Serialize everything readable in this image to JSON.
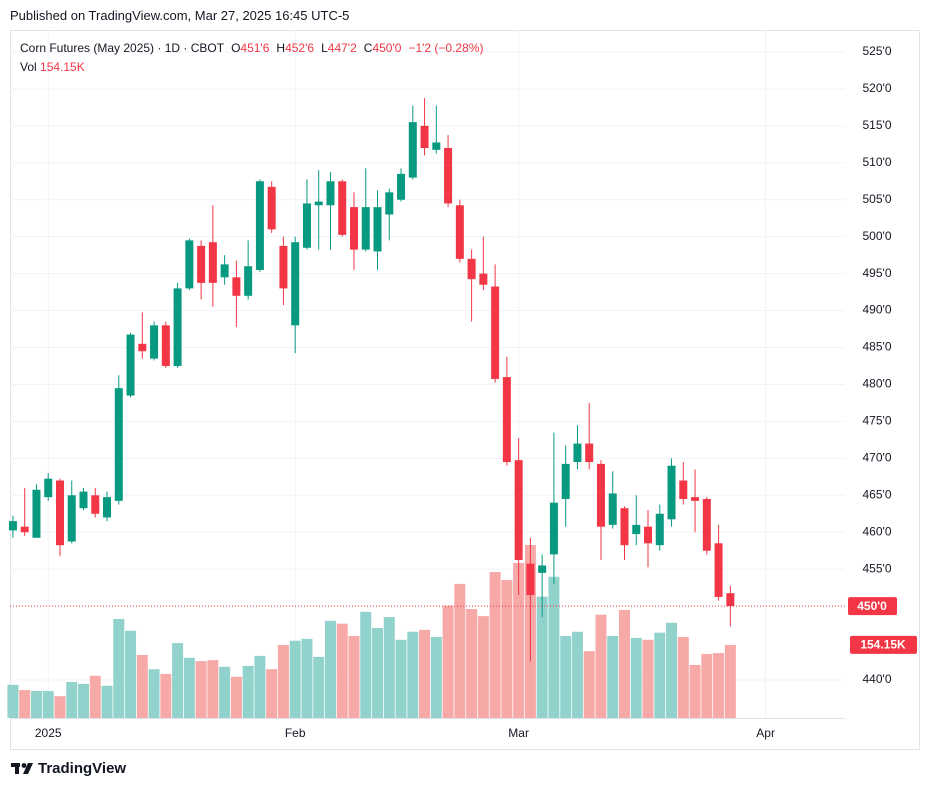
{
  "header": {
    "published": "Published on TradingView.com, Mar 27, 2025 16:45 UTC-5"
  },
  "chart_data": {
    "type": "candlestick",
    "title": "Corn Futures (May 2025) · 1D · CBOT",
    "ohlc_legend": [
      {
        "key": "O",
        "text": "451'6"
      },
      {
        "key": "H",
        "text": "452'6"
      },
      {
        "key": "L",
        "text": "447'2"
      },
      {
        "key": "C",
        "text": "450'0"
      }
    ],
    "change": "−1'2 (−0.28%)",
    "last_close_label": "450'0",
    "up_color": "#089981",
    "down_color": "#f23645",
    "volume_up_color": "#92d2cc",
    "volume_down_color": "#f7a9a7",
    "grid": true,
    "xlim": [
      -0.25,
      70.75
    ],
    "xticks": [
      {
        "value": 3,
        "label": "2025"
      },
      {
        "value": 24,
        "label": "Feb"
      },
      {
        "value": 43,
        "label": "Mar"
      },
      {
        "value": 64,
        "label": "Apr"
      }
    ],
    "ylim": [
      430.8,
      527.7
    ],
    "yticks": [
      {
        "value": 440,
        "label": "440'0"
      },
      {
        "value": 455,
        "label": "455'0"
      },
      {
        "value": 460,
        "label": "460'0"
      },
      {
        "value": 465,
        "label": "465'0"
      },
      {
        "value": 470,
        "label": "470'0"
      },
      {
        "value": 475,
        "label": "475'0"
      },
      {
        "value": 480,
        "label": "480'0"
      },
      {
        "value": 485,
        "label": "485'0"
      },
      {
        "value": 490,
        "label": "490'0"
      },
      {
        "value": 495,
        "label": "495'0"
      },
      {
        "value": 500,
        "label": "500'0"
      },
      {
        "value": 505,
        "label": "505'0"
      },
      {
        "value": 510,
        "label": "510'0"
      },
      {
        "value": 515,
        "label": "515'0"
      },
      {
        "value": 520,
        "label": "520'0"
      },
      {
        "value": 525,
        "label": "525'0"
      }
    ],
    "open": [
      460.25,
      460.75,
      459.25,
      464.75,
      467,
      458.75,
      463.25,
      465,
      462,
      464.25,
      478.5,
      485.5,
      483.5,
      488,
      482.5,
      493,
      498.75,
      499.25,
      494.5,
      494.5,
      492,
      495.5,
      506.75,
      498.75,
      488,
      498.5,
      504.25,
      504.25,
      507.5,
      504,
      498.25,
      498,
      503,
      505,
      508,
      515,
      511.75,
      512,
      504.25,
      497,
      495,
      493.25,
      481,
      469.75,
      455.75,
      454.5,
      457,
      464.5,
      469.5,
      472,
      469.25,
      461,
      463.25,
      459.75,
      460.75,
      458.25,
      461.75,
      467,
      464.75,
      464.5,
      458.5,
      451.75
    ],
    "high": [
      462.25,
      466,
      466.5,
      468,
      467.25,
      467,
      466,
      466,
      465.5,
      481.25,
      487,
      489.75,
      488.5,
      488.5,
      493.75,
      499.75,
      499.5,
      504.25,
      497.5,
      496.75,
      499.5,
      507.75,
      507.5,
      500,
      500,
      507.75,
      509,
      508.75,
      507.75,
      506,
      509.25,
      506.25,
      506.5,
      509.25,
      517.75,
      518.75,
      517.75,
      513.75,
      505,
      498.25,
      500,
      496.25,
      483.75,
      472.75,
      459.25,
      457,
      473.5,
      471.75,
      474.5,
      477.5,
      469.75,
      468.25,
      463.5,
      465,
      463,
      463.75,
      470,
      469.5,
      468.5,
      464.75,
      461,
      452.75
    ],
    "low": [
      459.25,
      459.5,
      459.25,
      464.25,
      456.75,
      458.5,
      463,
      462,
      461.5,
      463.75,
      478.25,
      483.5,
      483.25,
      482.25,
      482.25,
      492.75,
      491.5,
      490.5,
      493.5,
      487.75,
      491.5,
      495.25,
      500.5,
      490.75,
      484.25,
      498.25,
      498.25,
      498.25,
      500,
      495.5,
      498,
      495.5,
      499.5,
      504.75,
      507.75,
      511,
      511.25,
      504,
      496.5,
      488.5,
      492.75,
      480.25,
      469,
      451.5,
      442.5,
      448.5,
      453,
      460.75,
      468.5,
      468.5,
      456.25,
      460.5,
      456.25,
      458.25,
      455.25,
      457.5,
      460.75,
      463.75,
      460,
      457,
      450.75,
      447.25
    ],
    "close": [
      461.5,
      460,
      465.75,
      467.25,
      458.25,
      465,
      465.5,
      462.5,
      464.75,
      479.5,
      486.75,
      484.5,
      488,
      482.5,
      493,
      499.5,
      493.75,
      493.75,
      496.25,
      492,
      496,
      507.5,
      501,
      493,
      499.25,
      504.5,
      504.75,
      507.5,
      500.25,
      498.25,
      504,
      504,
      506,
      508.5,
      515.5,
      512,
      512.75,
      504.5,
      497,
      494.25,
      493.5,
      480.75,
      469.5,
      456.25,
      451.5,
      455.5,
      464,
      469.25,
      472,
      469.5,
      460.75,
      465.25,
      458.25,
      461,
      458.5,
      462.5,
      469,
      464.5,
      464.25,
      457.5,
      451.25,
      450
    ],
    "volume": {
      "name": "Vol",
      "last_label": "154.15K",
      "values": [
        70000,
        59000,
        57000,
        57000,
        46000,
        76000,
        72000,
        89000,
        68000,
        209000,
        184000,
        133000,
        103000,
        93000,
        158000,
        127000,
        120000,
        122000,
        108000,
        87000,
        110000,
        131000,
        103000,
        154000,
        163000,
        167000,
        129000,
        205000,
        199000,
        173000,
        224000,
        190000,
        213000,
        165000,
        182000,
        186000,
        171000,
        237000,
        283000,
        230000,
        215000,
        308000,
        291000,
        327000,
        365000,
        256000,
        298000,
        173000,
        182000,
        141000,
        218000,
        173000,
        228000,
        169000,
        165000,
        180000,
        201000,
        171000,
        112000,
        135000,
        137000,
        154150
      ]
    }
  },
  "footer": {
    "brand": "TradingView"
  }
}
